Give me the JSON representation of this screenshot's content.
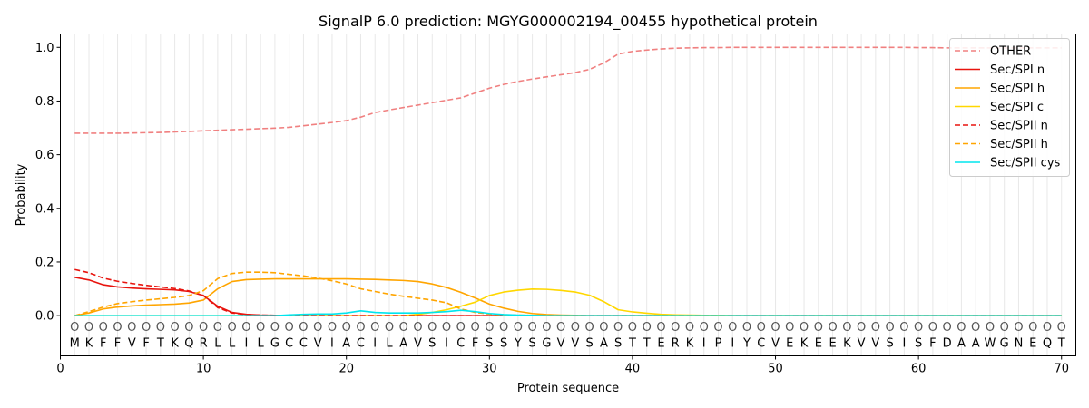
{
  "chart_data": {
    "type": "line",
    "title": "SignalP 6.0 prediction: MGYG000002194_00455 hypothetical protein",
    "xlabel": "Protein sequence",
    "ylabel": "Probability",
    "xlim": [
      0,
      71
    ],
    "ylim": [
      -0.15,
      1.05
    ],
    "xticks": [
      0,
      10,
      20,
      30,
      40,
      50,
      60,
      70
    ],
    "yticks": [
      0.0,
      0.2,
      0.4,
      0.6,
      0.8,
      1.0
    ],
    "ytick_labels": [
      "0.0",
      "0.2",
      "0.4",
      "0.6",
      "0.8",
      "1.0"
    ],
    "grid": "vertical lines at each residue",
    "legend_position": "top-right",
    "sequence": [
      "M",
      "K",
      "F",
      "F",
      "V",
      "F",
      "T",
      "K",
      "Q",
      "R",
      "L",
      "L",
      "I",
      "L",
      "G",
      "C",
      "C",
      "V",
      "I",
      "A",
      "C",
      "I",
      "L",
      "A",
      "V",
      "S",
      "I",
      "C",
      "F",
      "S",
      "S",
      "Y",
      "S",
      "G",
      "V",
      "V",
      "S",
      "A",
      "S",
      "T",
      "T",
      "E",
      "R",
      "K",
      "I",
      "P",
      "I",
      "Y",
      "C",
      "V",
      "E",
      "K",
      "E",
      "E",
      "K",
      "V",
      "V",
      "S",
      "I",
      "S",
      "F",
      "D",
      "A",
      "A",
      "W",
      "G",
      "N",
      "E",
      "Q",
      "T"
    ],
    "residue_marker": "O",
    "series": [
      {
        "name": "OTHER",
        "color": "#f08080",
        "dash": "dashed",
        "values": [
          0.68,
          0.68,
          0.68,
          0.68,
          0.681,
          0.682,
          0.683,
          0.685,
          0.687,
          0.689,
          0.691,
          0.693,
          0.695,
          0.697,
          0.699,
          0.702,
          0.708,
          0.714,
          0.72,
          0.727,
          0.74,
          0.757,
          0.767,
          0.776,
          0.785,
          0.794,
          0.803,
          0.812,
          0.83,
          0.848,
          0.862,
          0.873,
          0.882,
          0.89,
          0.898,
          0.906,
          0.918,
          0.942,
          0.975,
          0.985,
          0.99,
          0.994,
          0.997,
          0.998,
          0.999,
          0.999,
          1.0,
          1.0,
          1.0,
          1.0,
          1.0,
          1.0,
          1.0,
          1.0,
          1.0,
          1.0,
          1.0,
          1.0,
          1.0,
          0.999,
          0.999,
          0.998,
          0.998,
          0.998,
          0.998,
          0.998,
          0.998,
          0.998,
          0.998,
          0.998
        ]
      },
      {
        "name": "Sec/SPI n",
        "color": "#e8140e",
        "dash": "solid",
        "values": [
          0.143,
          0.133,
          0.115,
          0.107,
          0.103,
          0.1,
          0.098,
          0.096,
          0.09,
          0.075,
          0.035,
          0.012,
          0.005,
          0.002,
          0.001,
          0.001,
          0,
          0,
          0,
          0,
          0,
          0,
          0,
          0,
          0,
          0,
          0,
          0,
          0,
          0,
          0,
          0,
          0,
          0,
          0,
          0,
          0,
          0,
          0,
          0,
          0,
          0,
          0,
          0,
          0,
          0,
          0,
          0,
          0,
          0,
          0,
          0,
          0,
          0,
          0,
          0,
          0,
          0,
          0,
          0,
          0,
          0,
          0,
          0,
          0,
          0,
          0,
          0,
          0,
          0
        ]
      },
      {
        "name": "Sec/SPI h",
        "color": "#ffa500",
        "dash": "solid",
        "values": [
          0.0,
          0.01,
          0.025,
          0.032,
          0.036,
          0.039,
          0.041,
          0.043,
          0.047,
          0.058,
          0.1,
          0.127,
          0.134,
          0.136,
          0.137,
          0.137,
          0.137,
          0.137,
          0.137,
          0.137,
          0.136,
          0.135,
          0.133,
          0.131,
          0.127,
          0.118,
          0.105,
          0.087,
          0.066,
          0.043,
          0.028,
          0.016,
          0.008,
          0.004,
          0.002,
          0.001,
          0,
          0,
          0,
          0,
          0,
          0,
          0,
          0,
          0,
          0,
          0,
          0,
          0,
          0,
          0,
          0,
          0,
          0,
          0,
          0,
          0,
          0,
          0,
          0,
          0,
          0,
          0,
          0,
          0,
          0,
          0,
          0,
          0,
          0
        ]
      },
      {
        "name": "Sec/SPI c",
        "color": "#ffd700",
        "dash": "solid",
        "values": [
          0,
          0,
          0,
          0,
          0,
          0,
          0,
          0,
          0,
          0,
          0,
          0,
          0,
          0,
          0,
          0,
          0,
          0,
          0,
          0,
          0,
          0,
          0,
          0,
          0.005,
          0.012,
          0.022,
          0.035,
          0.05,
          0.075,
          0.088,
          0.095,
          0.099,
          0.098,
          0.094,
          0.088,
          0.076,
          0.052,
          0.022,
          0.014,
          0.009,
          0.005,
          0.003,
          0.002,
          0.001,
          0.001,
          0,
          0,
          0,
          0,
          0,
          0,
          0,
          0,
          0,
          0,
          0,
          0,
          0,
          0,
          0,
          0,
          0,
          0,
          0,
          0,
          0,
          0,
          0,
          0
        ]
      },
      {
        "name": "Sec/SPII n",
        "color": "#e8140e",
        "dash": "dashed",
        "values": [
          0.172,
          0.16,
          0.14,
          0.128,
          0.12,
          0.113,
          0.107,
          0.101,
          0.092,
          0.075,
          0.03,
          0.01,
          0.004,
          0.002,
          0.001,
          0,
          0,
          0,
          0,
          0,
          0,
          0,
          0,
          0,
          0,
          0,
          0,
          0,
          0,
          0,
          0,
          0,
          0,
          0,
          0,
          0,
          0,
          0,
          0,
          0,
          0,
          0,
          0,
          0,
          0,
          0,
          0,
          0,
          0,
          0,
          0,
          0,
          0,
          0,
          0,
          0,
          0,
          0,
          0,
          0,
          0,
          0,
          0,
          0,
          0,
          0,
          0,
          0,
          0,
          0
        ]
      },
      {
        "name": "Sec/SPII h",
        "color": "#ffa500",
        "dash": "dashed",
        "values": [
          0.0,
          0.015,
          0.032,
          0.045,
          0.052,
          0.058,
          0.063,
          0.068,
          0.075,
          0.093,
          0.138,
          0.157,
          0.162,
          0.162,
          0.16,
          0.154,
          0.148,
          0.14,
          0.13,
          0.118,
          0.1,
          0.09,
          0.08,
          0.072,
          0.065,
          0.058,
          0.048,
          0.025,
          0.012,
          0.006,
          0.003,
          0.002,
          0.001,
          0,
          0,
          0,
          0,
          0,
          0,
          0,
          0,
          0,
          0,
          0,
          0,
          0,
          0,
          0,
          0,
          0,
          0,
          0,
          0,
          0,
          0,
          0,
          0,
          0,
          0,
          0,
          0,
          0,
          0,
          0,
          0,
          0,
          0,
          0,
          0,
          0
        ]
      },
      {
        "name": "Sec/SPII cys",
        "color": "#00e5ee",
        "dash": "solid",
        "values": [
          0,
          0,
          0,
          0,
          0,
          0,
          0,
          0,
          0,
          0,
          0,
          0,
          0,
          0,
          0,
          0.003,
          0.005,
          0.006,
          0.006,
          0.01,
          0.018,
          0.012,
          0.01,
          0.01,
          0.01,
          0.012,
          0.015,
          0.02,
          0.015,
          0.008,
          0.004,
          0.002,
          0.001,
          0,
          0,
          0,
          0,
          0,
          0,
          0,
          0,
          0,
          0,
          0,
          0,
          0,
          0,
          0,
          0,
          0,
          0,
          0,
          0,
          0,
          0,
          0,
          0,
          0,
          0,
          0,
          0,
          0,
          0,
          0,
          0,
          0,
          0,
          0,
          0,
          0
        ]
      }
    ]
  }
}
